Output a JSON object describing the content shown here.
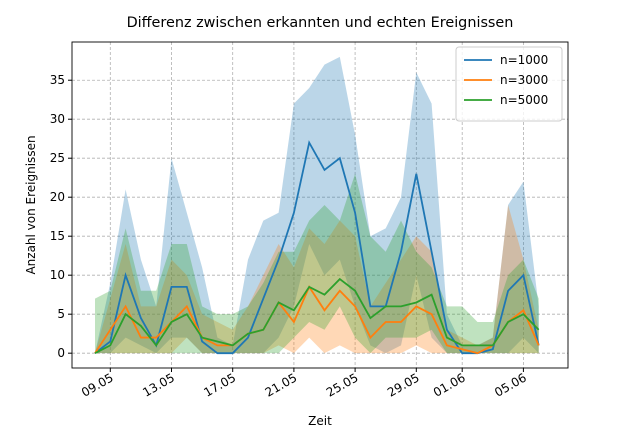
{
  "chart_data": {
    "type": "line",
    "title": "Differenz zwischen erkannten und echten Ereignissen",
    "x_label": "Zeit",
    "y_label": "Anzahl von Ereignissen",
    "x": [
      "08.05",
      "09.05",
      "10.05",
      "11.05",
      "12.05",
      "13.05",
      "14.05",
      "15.05",
      "16.05",
      "17.05",
      "18.05",
      "19.05",
      "20.05",
      "21.05",
      "22.05",
      "23.05",
      "24.05",
      "25.05",
      "26.05",
      "27.05",
      "28.05",
      "29.05",
      "30.05",
      "31.05",
      "01.06",
      "02.06",
      "03.06",
      "04.06",
      "05.06",
      "06.06"
    ],
    "xticks": [
      "09.05",
      "13.05",
      "17.05",
      "21.05",
      "25.05",
      "29.05",
      "01.06",
      "05.06"
    ],
    "ylim": [
      -1.9,
      39.9
    ],
    "yticks": [
      0,
      5,
      10,
      15,
      20,
      25,
      30,
      35
    ],
    "grid": true,
    "legend": "upper right",
    "series": [
      {
        "name": "n=1000",
        "color": "#1f77b4",
        "values": [
          0,
          1.5,
          10,
          4.5,
          1,
          8.5,
          8.5,
          1.5,
          0,
          0,
          2,
          7,
          12,
          18,
          27,
          23.5,
          25,
          18,
          6,
          6,
          13,
          23,
          13,
          3,
          0,
          0,
          0.5,
          8,
          10,
          1
        ],
        "upper": [
          0,
          9,
          21,
          12,
          6,
          25,
          18,
          11,
          2,
          1,
          12,
          17,
          18,
          32,
          34,
          37,
          38,
          28,
          15,
          16,
          20,
          36,
          32,
          5,
          1,
          1,
          2,
          19,
          22,
          6
        ],
        "lower": [
          0,
          0,
          2,
          1,
          0,
          2,
          2,
          0,
          0,
          0,
          0,
          0,
          2,
          6,
          14,
          10,
          12,
          6,
          1,
          0,
          1,
          10,
          2,
          0,
          0,
          0,
          0,
          0,
          2,
          0
        ]
      },
      {
        "name": "n=3000",
        "color": "#ff7f0e",
        "values": [
          0,
          3,
          6,
          2,
          2,
          4,
          6,
          2,
          1,
          1,
          2.5,
          3,
          6.5,
          4,
          8.5,
          5.5,
          8,
          6,
          2,
          4,
          4,
          6,
          5,
          1,
          0.5,
          0,
          1,
          4,
          5.5,
          1
        ],
        "upper": [
          0,
          7,
          14,
          6,
          6,
          12,
          10,
          5,
          4,
          3,
          6,
          10,
          14,
          11,
          16,
          14,
          17,
          15,
          6,
          9,
          12,
          15,
          13,
          3,
          2,
          1,
          2,
          19,
          12,
          3
        ],
        "lower": [
          0,
          0,
          0,
          0,
          0,
          0,
          2,
          0,
          0,
          0,
          0,
          0,
          1,
          0,
          2,
          0,
          1,
          0,
          0,
          0,
          0,
          1,
          0,
          0,
          0,
          0,
          0,
          0,
          0,
          0
        ]
      },
      {
        "name": "n=5000",
        "color": "#2ca02c",
        "values": [
          0,
          1,
          5,
          3.5,
          1,
          4,
          5,
          2,
          1.5,
          1,
          2.5,
          3,
          6.5,
          5.5,
          8.5,
          7.5,
          9.5,
          8,
          4.5,
          6,
          6,
          6.5,
          7.5,
          2,
          1,
          1,
          1,
          4,
          5,
          3
        ],
        "upper": [
          7,
          8,
          16,
          8,
          8,
          14,
          14,
          6,
          5,
          5,
          6,
          9,
          13,
          13,
          17,
          19,
          17,
          23,
          15,
          13,
          17,
          13,
          11,
          6,
          6,
          4,
          4,
          10,
          12,
          7
        ],
        "lower": [
          0,
          0,
          0,
          0,
          0,
          0,
          0,
          0,
          0,
          0,
          0,
          0,
          0,
          2,
          4,
          3,
          6,
          2,
          0,
          2,
          2,
          2,
          3,
          0,
          0,
          0,
          0,
          0,
          0,
          0
        ]
      }
    ]
  }
}
